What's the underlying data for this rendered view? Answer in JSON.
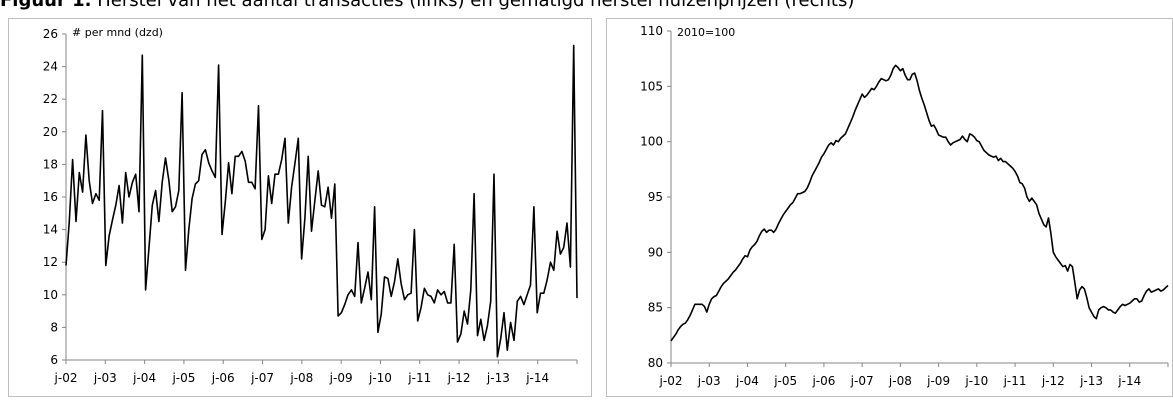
{
  "figure": {
    "number": "Figuur 1.",
    "text": "Herstel van het aantal transacties (links) en gematigd herstel huizenprijzen (rechts)"
  },
  "chart_data": [
    {
      "type": "line",
      "unit_label": "# per mnd (dzd)",
      "ylim": [
        6,
        26
      ],
      "yticks": [
        6,
        8,
        10,
        12,
        14,
        16,
        18,
        20,
        22,
        24,
        26
      ],
      "xticks": [
        "j-02",
        "j-03",
        "j-04",
        "j-05",
        "j-06",
        "j-07",
        "j-08",
        "j-09",
        "j-10",
        "j-11",
        "j-12",
        "j-13",
        "j-14"
      ],
      "x_start": "2002-01",
      "x_end": "2014-12",
      "grid": false,
      "legend": "none",
      "line_color": "#000000",
      "series": [
        {
          "values": [
            11.8,
            14.5,
            18.3,
            14.5,
            17.5,
            16.3,
            19.8,
            17.0,
            15.6,
            16.2,
            15.8,
            21.3,
            11.8,
            13.6,
            14.6,
            15.5,
            16.7,
            14.4,
            17.5,
            16.0,
            16.9,
            17.4,
            15.1,
            24.7,
            10.3,
            12.9,
            15.5,
            16.4,
            14.5,
            16.9,
            18.4,
            17.0,
            15.1,
            15.4,
            16.4,
            22.4,
            11.5,
            14.0,
            15.9,
            16.8,
            17.0,
            18.6,
            18.9,
            18.1,
            17.6,
            17.2,
            24.1,
            13.7,
            15.7,
            18.1,
            16.2,
            18.5,
            18.5,
            18.8,
            18.2,
            16.9,
            16.9,
            16.5,
            21.6,
            13.4,
            14.0,
            17.3,
            15.6,
            17.4,
            17.4,
            18.3,
            19.6,
            14.4,
            16.6,
            18.1,
            19.6,
            12.2,
            14.7,
            18.5,
            13.9,
            15.8,
            17.6,
            15.5,
            15.4,
            16.6,
            14.7,
            16.8,
            8.7,
            8.9,
            9.4,
            10.0,
            10.3,
            9.9,
            13.2,
            9.5,
            10.4,
            11.4,
            9.7,
            15.4,
            7.7,
            8.8,
            11.1,
            11.0,
            9.9,
            10.8,
            12.2,
            10.7,
            9.7,
            10.0,
            10.1,
            14.0,
            8.4,
            9.2,
            10.4,
            10.0,
            9.9,
            9.5,
            10.3,
            10.0,
            10.2,
            9.5,
            9.5,
            13.1,
            7.1,
            7.6,
            9.0,
            8.2,
            10.3,
            16.2,
            7.5,
            8.5,
            7.2,
            8.1,
            9.6,
            17.4,
            6.2,
            7.3,
            8.9,
            6.6,
            8.3,
            7.2,
            9.6,
            9.9,
            9.4,
            10.0,
            10.6,
            15.4,
            8.9,
            10.1,
            10.1,
            10.9,
            12.0,
            11.5,
            13.9,
            12.5,
            12.9,
            14.4,
            11.7,
            25.3,
            9.8
          ]
        }
      ]
    },
    {
      "type": "line",
      "unit_label": "2010=100",
      "ylim": [
        80,
        110
      ],
      "yticks": [
        80,
        85,
        90,
        95,
        100,
        105,
        110
      ],
      "xticks": [
        "j-02",
        "j-03",
        "j-04",
        "j-05",
        "j-06",
        "j-07",
        "j-08",
        "j-09",
        "j-10",
        "j-11",
        "j-12",
        "j-13",
        "j-14"
      ],
      "x_start": "2002-01",
      "x_end": "2014-12",
      "grid": false,
      "legend": "none",
      "line_color": "#000000",
      "series": [
        {
          "values": [
            82.0,
            82.3,
            82.6,
            83.0,
            83.3,
            83.5,
            83.6,
            83.9,
            84.3,
            84.8,
            85.3,
            85.3,
            85.3,
            85.3,
            85.1,
            84.6,
            85.3,
            85.8,
            86.0,
            86.1,
            86.5,
            86.9,
            87.2,
            87.4,
            87.6,
            87.9,
            88.2,
            88.4,
            88.7,
            89.0,
            89.4,
            89.7,
            89.6,
            90.2,
            90.5,
            90.7,
            91.0,
            91.5,
            91.9,
            92.1,
            91.8,
            92.0,
            92.0,
            91.8,
            92.1,
            92.6,
            93.0,
            93.4,
            93.7,
            94.0,
            94.3,
            94.5,
            94.9,
            95.3,
            95.3,
            95.4,
            95.5,
            95.8,
            96.3,
            96.9,
            97.3,
            97.7,
            98.1,
            98.6,
            98.9,
            99.3,
            99.7,
            99.9,
            99.7,
            100.1,
            100.0,
            100.3,
            100.5,
            100.7,
            101.2,
            101.7,
            102.2,
            102.8,
            103.3,
            103.8,
            104.3,
            104.0,
            104.2,
            104.5,
            104.8,
            104.7,
            105.0,
            105.4,
            105.7,
            105.6,
            105.5,
            105.6,
            106.0,
            106.6,
            106.9,
            106.7,
            106.4,
            106.6,
            106.0,
            105.6,
            105.6,
            106.1,
            106.2,
            105.5,
            104.6,
            103.9,
            103.3,
            102.6,
            101.9,
            101.4,
            101.5,
            101.1,
            100.6,
            100.5,
            100.4,
            100.4,
            100.0,
            99.7,
            99.9,
            100.0,
            100.1,
            100.2,
            100.5,
            100.2,
            100.0,
            100.7,
            100.6,
            100.4,
            100.1,
            100.0,
            99.6,
            99.2,
            99.0,
            98.8,
            98.7,
            98.6,
            98.7,
            98.3,
            98.5,
            98.2,
            98.2,
            98.0,
            97.8,
            97.6,
            97.3,
            96.9,
            96.3,
            96.2,
            95.8,
            95.0,
            94.6,
            94.9,
            94.6,
            94.3,
            93.5,
            93.0,
            92.5,
            92.3,
            93.1,
            91.7,
            90.0,
            89.6,
            89.3,
            89.0,
            88.7,
            88.8,
            88.3,
            88.9,
            88.7,
            87.3,
            85.8,
            86.6,
            86.9,
            86.7,
            85.9,
            85.0,
            84.6,
            84.2,
            84.0,
            84.8,
            85.0,
            85.1,
            85.0,
            84.8,
            84.8,
            84.6,
            84.5,
            84.8,
            85.1,
            85.3,
            85.2,
            85.3,
            85.4,
            85.6,
            85.8,
            85.8,
            85.5,
            85.6,
            86.1,
            86.5,
            86.7,
            86.4,
            86.5,
            86.6,
            86.7,
            86.5,
            86.6,
            86.8,
            87.0
          ]
        }
      ]
    }
  ]
}
